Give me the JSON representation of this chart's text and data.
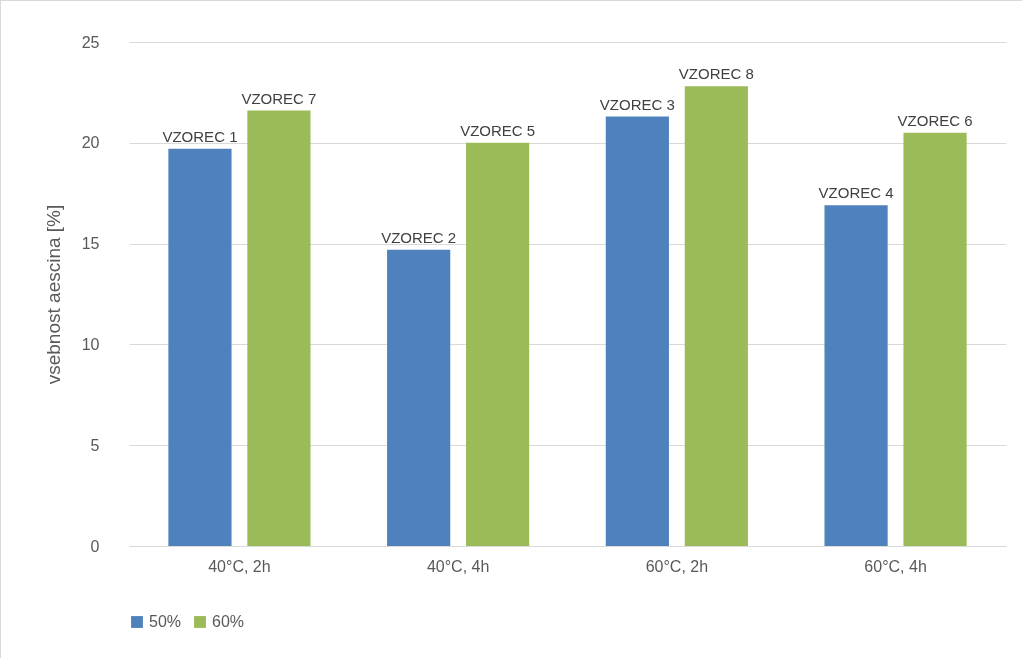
{
  "chart_data": {
    "type": "bar",
    "ylabel": "vsebnost aescina [%]",
    "categories": [
      "40°C, 2h",
      "40°C, 4h",
      "60°C, 2h",
      "60°C, 4h"
    ],
    "series": [
      {
        "name": "50%",
        "color": "#4f81bd",
        "values": [
          19.7,
          14.7,
          21.3,
          16.9
        ],
        "value_labels": [
          "VZOREC 1",
          "VZOREC 2",
          "VZOREC 3",
          "VZOREC 4"
        ]
      },
      {
        "name": "60%",
        "color": "#9bbb59",
        "values": [
          21.6,
          20.0,
          22.8,
          20.5
        ],
        "value_labels": [
          "VZOREC 7",
          "VZOREC 5",
          "VZOREC  8",
          "VZOREC 6"
        ]
      }
    ],
    "ylim": [
      0,
      25
    ],
    "yticks": [
      0,
      5,
      10,
      15,
      20,
      25
    ],
    "grid": "y",
    "legend": "bottom"
  }
}
